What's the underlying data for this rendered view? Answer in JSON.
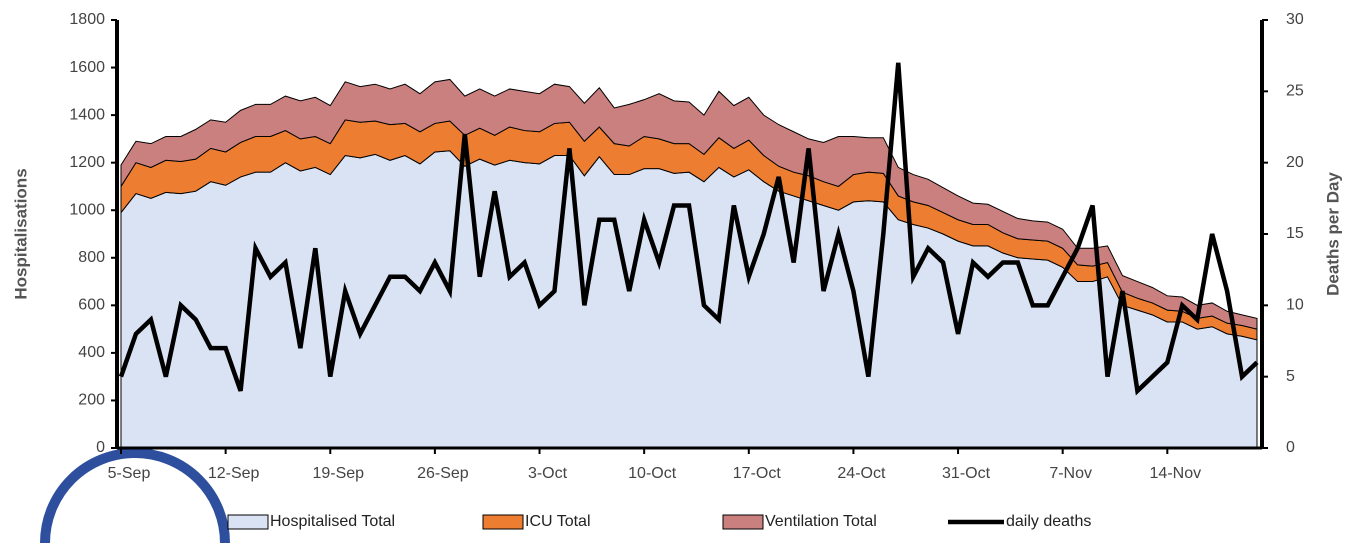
{
  "chart_data": {
    "type": "stacked_area_line",
    "y_label": "Hospitalisations",
    "y2_label": "Deaths per Day",
    "legend": "bottom",
    "categories": [
      "5-Sep",
      null,
      null,
      null,
      null,
      null,
      null,
      "12-Sep",
      null,
      null,
      null,
      null,
      null,
      null,
      "19-Sep",
      null,
      null,
      null,
      null,
      null,
      null,
      "26-Sep",
      null,
      null,
      null,
      null,
      null,
      null,
      "3-Oct",
      null,
      null,
      null,
      null,
      null,
      null,
      "10-Oct",
      null,
      null,
      null,
      null,
      null,
      null,
      "17-Oct",
      null,
      null,
      null,
      null,
      null,
      null,
      "24-Oct",
      null,
      null,
      null,
      null,
      null,
      null,
      "31-Oct",
      null,
      null,
      null,
      null,
      null,
      null,
      "7-Nov",
      null,
      null,
      null,
      null,
      null,
      null,
      "14-Nov",
      null,
      null,
      null,
      null,
      null,
      null
    ],
    "ylim": [
      0,
      1800
    ],
    "yticks": [
      0,
      200,
      400,
      600,
      800,
      1000,
      1200,
      1400,
      1600,
      1800
    ],
    "y2lim": [
      0,
      30
    ],
    "y2ticks": [
      0,
      5,
      10,
      15,
      20,
      25,
      30
    ],
    "series": [
      {
        "name": "Hospitalised Total",
        "kind": "area",
        "color": "#dae3f3",
        "values": [
          990,
          1070,
          1050,
          1075,
          1070,
          1080,
          1120,
          1105,
          1140,
          1160,
          1160,
          1200,
          1165,
          1180,
          1150,
          1230,
          1220,
          1235,
          1210,
          1230,
          1195,
          1245,
          1250,
          1185,
          1215,
          1190,
          1210,
          1200,
          1195,
          1230,
          1230,
          1145,
          1225,
          1150,
          1150,
          1175,
          1175,
          1155,
          1160,
          1120,
          1180,
          1140,
          1170,
          1120,
          1080,
          1060,
          1040,
          1020,
          1000,
          1035,
          1040,
          1035,
          960,
          940,
          925,
          900,
          870,
          850,
          850,
          820,
          800,
          795,
          790,
          760,
          700,
          700,
          720,
          600,
          580,
          560,
          530,
          530,
          500,
          510,
          480,
          470,
          455
        ]
      },
      {
        "name": "ICU Total",
        "kind": "area",
        "color": "#ed7d31",
        "values": [
          110,
          130,
          130,
          135,
          135,
          135,
          140,
          140,
          145,
          150,
          150,
          135,
          135,
          130,
          130,
          150,
          150,
          140,
          150,
          135,
          135,
          120,
          125,
          130,
          130,
          125,
          140,
          135,
          135,
          135,
          140,
          145,
          125,
          130,
          120,
          135,
          125,
          125,
          120,
          115,
          125,
          120,
          125,
          110,
          105,
          100,
          105,
          100,
          100,
          115,
          120,
          120,
          100,
          95,
          95,
          90,
          90,
          90,
          90,
          85,
          80,
          80,
          80,
          80,
          70,
          65,
          60,
          55,
          50,
          50,
          50,
          45,
          45,
          45,
          45,
          45,
          45
        ]
      },
      {
        "name": "Ventilation Total",
        "kind": "area",
        "color": "#c9807f",
        "values": [
          90,
          90,
          100,
          100,
          105,
          125,
          120,
          125,
          135,
          135,
          135,
          145,
          160,
          165,
          160,
          160,
          150,
          155,
          150,
          165,
          160,
          175,
          175,
          165,
          165,
          165,
          160,
          165,
          160,
          165,
          150,
          160,
          165,
          150,
          175,
          155,
          190,
          180,
          175,
          165,
          195,
          180,
          180,
          170,
          175,
          170,
          155,
          165,
          210,
          160,
          145,
          150,
          120,
          115,
          110,
          105,
          100,
          90,
          85,
          90,
          85,
          80,
          80,
          80,
          70,
          75,
          70,
          70,
          70,
          65,
          60,
          60,
          55,
          55,
          50,
          45,
          45
        ]
      },
      {
        "name": "daily deaths",
        "kind": "line",
        "axis": "y2",
        "color": "#000000",
        "values": [
          5,
          8,
          9,
          5,
          10,
          9,
          7,
          7,
          4,
          14,
          12,
          13,
          7,
          14,
          5,
          11,
          8,
          10,
          12,
          12,
          11,
          13,
          11,
          22,
          12,
          18,
          12,
          13,
          10,
          11,
          21,
          10,
          16,
          16,
          11,
          16,
          13,
          17,
          17,
          10,
          9,
          17,
          12,
          15,
          19,
          13,
          21,
          11,
          15,
          11,
          5,
          15,
          27,
          12,
          14,
          13,
          8,
          13,
          12,
          13,
          13,
          10,
          10,
          12,
          14,
          17,
          5,
          11,
          4,
          5,
          6,
          10,
          9,
          15,
          11,
          5,
          6
        ]
      }
    ]
  }
}
